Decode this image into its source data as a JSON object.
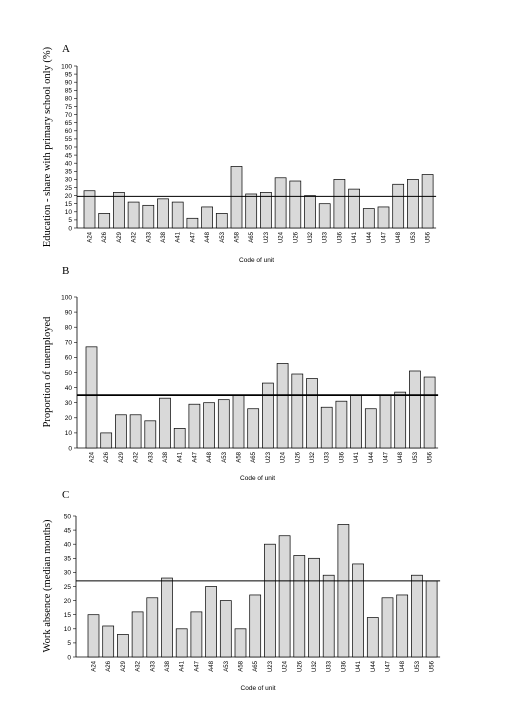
{
  "chart_data": [
    {
      "type": "bar",
      "panel_letter": "A",
      "xlabel": "Code of unit",
      "ylabel": "Education - share with primary school only (%)",
      "ylim": [
        0,
        100
      ],
      "yticks": [
        0,
        5,
        10,
        15,
        20,
        25,
        30,
        35,
        40,
        45,
        50,
        55,
        60,
        65,
        70,
        75,
        80,
        85,
        90,
        95,
        100
      ],
      "reference_line": 19.5,
      "categories": [
        "A24",
        "A26",
        "A29",
        "A32",
        "A33",
        "A38",
        "A41",
        "A47",
        "A48",
        "A53",
        "A58",
        "A65",
        "U23",
        "U24",
        "U26",
        "U32",
        "U33",
        "U36",
        "U41",
        "U44",
        "U47",
        "U48",
        "U53",
        "U56"
      ],
      "values": [
        23,
        9,
        22,
        16,
        14,
        18,
        16,
        6,
        13,
        9,
        38,
        21,
        22,
        31,
        29,
        20,
        15,
        30,
        24,
        12,
        13,
        27,
        30,
        33
      ],
      "grid": false,
      "bar_color": "#d9d9d9"
    },
    {
      "type": "bar",
      "panel_letter": "B",
      "xlabel": "Code of unit",
      "ylabel": "Proportion of unemployed",
      "ylim": [
        0,
        100
      ],
      "yticks": [
        0,
        10,
        20,
        30,
        40,
        50,
        60,
        70,
        80,
        90,
        100
      ],
      "reference_line": 35,
      "categories": [
        "A24",
        "A26",
        "A29",
        "A32",
        "A33",
        "A38",
        "A41",
        "A47",
        "A48",
        "A53",
        "A58",
        "A65",
        "U23",
        "U24",
        "U26",
        "U32",
        "U33",
        "U36",
        "U41",
        "U44",
        "U47",
        "U48",
        "U53",
        "U56"
      ],
      "values": [
        67,
        10,
        22,
        22,
        18,
        33,
        13,
        29,
        30,
        32,
        35,
        26,
        43,
        56,
        49,
        46,
        27,
        31,
        35,
        26,
        35,
        37,
        51,
        47
      ],
      "grid": false,
      "bar_color": "#d9d9d9"
    },
    {
      "type": "bar",
      "panel_letter": "C",
      "xlabel": "Code of unit",
      "ylabel": "Work absence (median months)",
      "ylim": [
        0,
        50
      ],
      "yticks": [
        0,
        5,
        10,
        15,
        20,
        25,
        30,
        35,
        40,
        45,
        50
      ],
      "reference_line": 27,
      "categories": [
        "A24",
        "A26",
        "A29",
        "A32",
        "A33",
        "A38",
        "A41",
        "A47",
        "A48",
        "A53",
        "A58",
        "A65",
        "U23",
        "U24",
        "U26",
        "U32",
        "U33",
        "U36",
        "U41",
        "U44",
        "U47",
        "U48",
        "U53",
        "U56"
      ],
      "values": [
        15,
        11,
        8,
        16,
        21,
        28,
        10,
        16,
        25,
        20,
        10,
        22,
        40,
        43,
        36,
        35,
        29,
        47,
        33,
        14,
        21,
        22,
        29,
        27
      ],
      "grid": false,
      "bar_color": "#d9d9d9"
    }
  ]
}
